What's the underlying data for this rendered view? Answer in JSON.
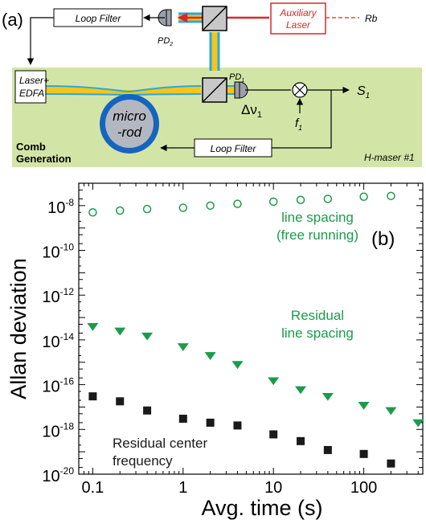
{
  "panel_a": {
    "panel_label": "(a)",
    "loop_filter_top": "Loop Filter",
    "loop_filter_bottom": "Loop Filter",
    "pd2": "PD",
    "pd2_sub": "2",
    "pd1": "PD",
    "pd1_sub": "1",
    "auxiliary_laser_line1": "Auxiliary",
    "auxiliary_laser_line2": "Laser",
    "rb": "Rb",
    "laser_edfa_line1": "Laser+",
    "laser_edfa_line2": "EDFA",
    "microrod_line1": "micro",
    "microrod_line2": "-rod",
    "delta_nu": "Δν",
    "delta_nu_sub": "1",
    "f1": "f",
    "f1_sub": "1",
    "s1": "S",
    "s1_sub": "1",
    "comb_generation_line1": "Comb",
    "comb_generation_line2": "Generation",
    "hmaser": "H-maser #1",
    "colors": {
      "green_panel": "#d3e5a6",
      "aux_laser_red": "#d8282e",
      "beam_yellow": "#f5c518",
      "beam_blue": "#2aa7df",
      "microrod_blue": "#1565c0",
      "microrod_fill": "#b3b8c0"
    }
  },
  "panel_b": {
    "panel_label": "(b)"
  },
  "chart_data": {
    "type": "scatter",
    "xlabel": "Avg. time (s)",
    "ylabel": "Allan deviation",
    "x_scale": "log",
    "y_scale": "log",
    "xlim": [
      0.07,
      450
    ],
    "ylim": [
      1e-20,
      1e-07
    ],
    "x_ticks": [
      {
        "value": 0.1,
        "label": "0.1"
      },
      {
        "value": 1,
        "label": "1"
      },
      {
        "value": 10,
        "label": "10"
      },
      {
        "value": 100,
        "label": "100"
      }
    ],
    "y_ticks": [
      {
        "value": 1e-08,
        "base": "10",
        "exp": "-8"
      },
      {
        "value": 1e-10,
        "base": "10",
        "exp": "-10"
      },
      {
        "value": 1e-12,
        "base": "10",
        "exp": "-12"
      },
      {
        "value": 1e-14,
        "base": "10",
        "exp": "-14"
      },
      {
        "value": 1e-16,
        "base": "10",
        "exp": "-16"
      },
      {
        "value": 1e-18,
        "base": "10",
        "exp": "-18"
      },
      {
        "value": 1e-20,
        "base": "10",
        "exp": "-20"
      }
    ],
    "series": [
      {
        "name": "line spacing (free running)",
        "label_lines": [
          "line spacing",
          "(free running)"
        ],
        "marker": "open-circle",
        "color": "#1a9c4a",
        "x": [
          0.1,
          0.2,
          0.4,
          1,
          2,
          4,
          10,
          20,
          40,
          100,
          200
        ],
        "y": [
          5e-09,
          6e-09,
          7e-09,
          8e-09,
          1e-08,
          1.2e-08,
          1.5e-08,
          1.8e-08,
          2e-08,
          2.5e-08,
          2.7e-08
        ]
      },
      {
        "name": "Residual line spacing",
        "label_lines": [
          "Residual",
          "line spacing"
        ],
        "marker": "filled-triangle-down",
        "color": "#1a9c4a",
        "x": [
          0.1,
          0.2,
          0.4,
          1,
          2,
          4,
          10,
          20,
          40,
          100,
          200,
          400
        ],
        "y": [
          4e-14,
          2.5e-14,
          1.5e-14,
          5e-15,
          2e-15,
          8e-16,
          1.5e-16,
          6e-17,
          3e-17,
          1.2e-17,
          7e-18,
          2e-18
        ]
      },
      {
        "name": "Residual center frequency",
        "label_lines": [
          "Residual center",
          "frequency"
        ],
        "marker": "filled-square",
        "color": "#1a1a1a",
        "x": [
          0.1,
          0.2,
          0.4,
          1,
          2,
          4,
          10,
          20,
          40,
          100,
          200
        ],
        "y": [
          3e-17,
          1.8e-17,
          7e-18,
          3e-18,
          2e-18,
          1.5e-18,
          6e-19,
          3e-19,
          1.2e-19,
          8e-20,
          3e-20
        ]
      }
    ]
  }
}
